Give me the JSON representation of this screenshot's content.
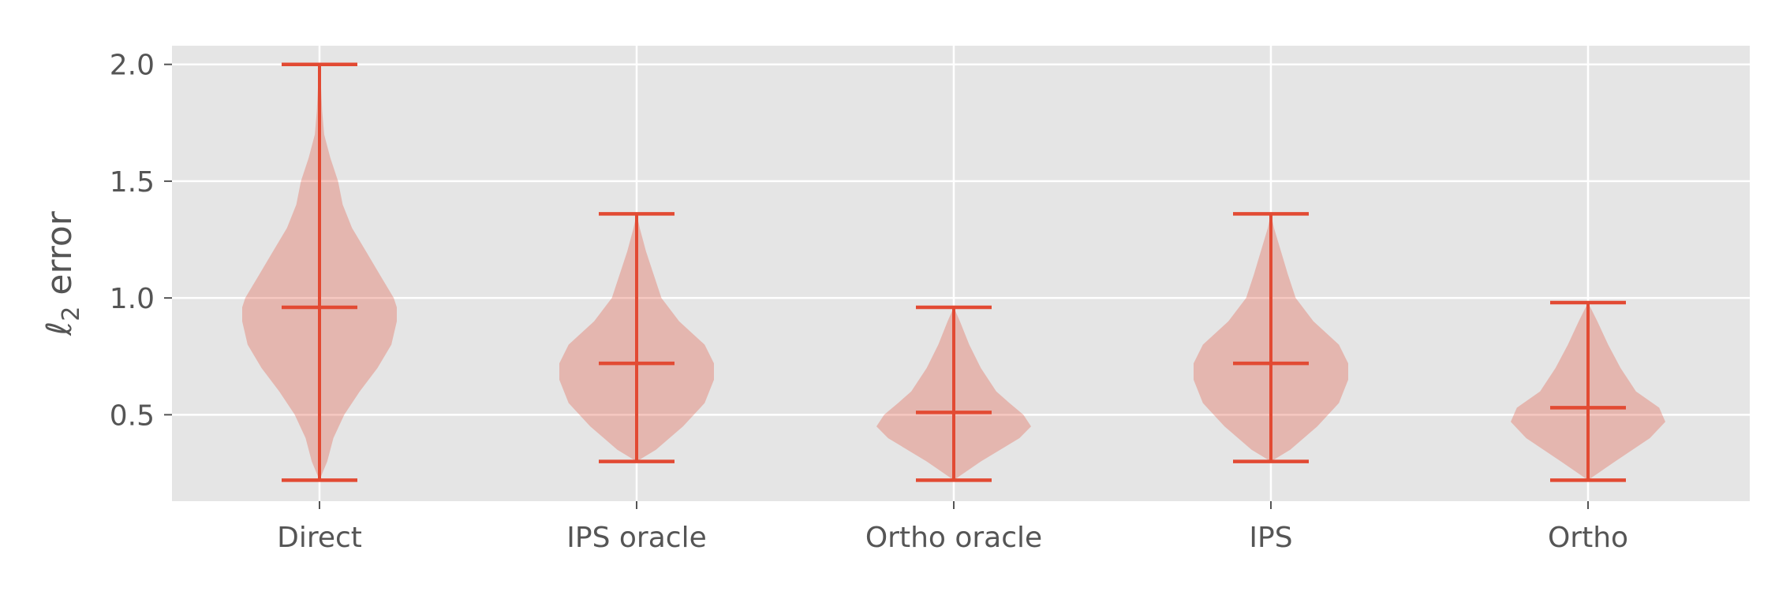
{
  "chart_data": {
    "type": "violin",
    "title": "",
    "xlabel": "",
    "ylabel": "error",
    "ylabel_symbol": "ℓ",
    "ylabel_subscript": "2",
    "ylim": [
      0.13,
      2.08
    ],
    "yticks": [
      0.5,
      1.0,
      1.5,
      2.0
    ],
    "ytick_labels": [
      "0.5",
      "1.0",
      "1.5",
      "2.0"
    ],
    "grid": true,
    "colors": {
      "body": "#E24A33",
      "lines": "#E24A33",
      "background": "#E5E5E5",
      "grid": "#FFFFFF"
    },
    "categories": [
      "Direct",
      "IPS oracle",
      "Ortho oracle",
      "IPS",
      "Ortho"
    ],
    "violins": [
      {
        "name": "Direct",
        "min": 0.22,
        "median": 0.96,
        "max": 2.0,
        "profile": [
          [
            0.22,
            0.0
          ],
          [
            0.3,
            0.1
          ],
          [
            0.4,
            0.18
          ],
          [
            0.5,
            0.32
          ],
          [
            0.6,
            0.52
          ],
          [
            0.7,
            0.75
          ],
          [
            0.8,
            0.93
          ],
          [
            0.9,
            1.0
          ],
          [
            0.96,
            1.0
          ],
          [
            1.0,
            0.96
          ],
          [
            1.1,
            0.78
          ],
          [
            1.2,
            0.6
          ],
          [
            1.3,
            0.42
          ],
          [
            1.4,
            0.3
          ],
          [
            1.5,
            0.24
          ],
          [
            1.6,
            0.14
          ],
          [
            1.7,
            0.06
          ],
          [
            1.8,
            0.035
          ],
          [
            1.9,
            0.02
          ],
          [
            2.0,
            0.0
          ]
        ]
      },
      {
        "name": "IPS oracle",
        "min": 0.3,
        "median": 0.72,
        "max": 1.36,
        "profile": [
          [
            0.3,
            0.0
          ],
          [
            0.35,
            0.25
          ],
          [
            0.45,
            0.6
          ],
          [
            0.55,
            0.88
          ],
          [
            0.65,
            1.0
          ],
          [
            0.72,
            1.0
          ],
          [
            0.8,
            0.88
          ],
          [
            0.9,
            0.55
          ],
          [
            1.0,
            0.32
          ],
          [
            1.1,
            0.22
          ],
          [
            1.2,
            0.12
          ],
          [
            1.3,
            0.04
          ],
          [
            1.36,
            0.0
          ]
        ]
      },
      {
        "name": "Ortho oracle",
        "min": 0.22,
        "median": 0.51,
        "max": 0.96,
        "profile": [
          [
            0.22,
            0.0
          ],
          [
            0.3,
            0.35
          ],
          [
            0.4,
            0.85
          ],
          [
            0.45,
            1.0
          ],
          [
            0.5,
            0.9
          ],
          [
            0.55,
            0.72
          ],
          [
            0.6,
            0.55
          ],
          [
            0.7,
            0.35
          ],
          [
            0.8,
            0.2
          ],
          [
            0.9,
            0.08
          ],
          [
            0.96,
            0.0
          ]
        ]
      },
      {
        "name": "IPS",
        "min": 0.3,
        "median": 0.72,
        "max": 1.36,
        "profile": [
          [
            0.3,
            0.0
          ],
          [
            0.35,
            0.25
          ],
          [
            0.45,
            0.6
          ],
          [
            0.55,
            0.88
          ],
          [
            0.65,
            1.0
          ],
          [
            0.72,
            1.0
          ],
          [
            0.8,
            0.88
          ],
          [
            0.9,
            0.55
          ],
          [
            1.0,
            0.32
          ],
          [
            1.1,
            0.22
          ],
          [
            1.2,
            0.13
          ],
          [
            1.3,
            0.04
          ],
          [
            1.36,
            0.0
          ]
        ]
      },
      {
        "name": "Ortho",
        "min": 0.22,
        "median": 0.53,
        "max": 0.98,
        "profile": [
          [
            0.22,
            0.0
          ],
          [
            0.3,
            0.35
          ],
          [
            0.4,
            0.8
          ],
          [
            0.47,
            1.0
          ],
          [
            0.53,
            0.92
          ],
          [
            0.6,
            0.62
          ],
          [
            0.7,
            0.42
          ],
          [
            0.8,
            0.26
          ],
          [
            0.9,
            0.12
          ],
          [
            0.98,
            0.0
          ]
        ]
      }
    ]
  }
}
